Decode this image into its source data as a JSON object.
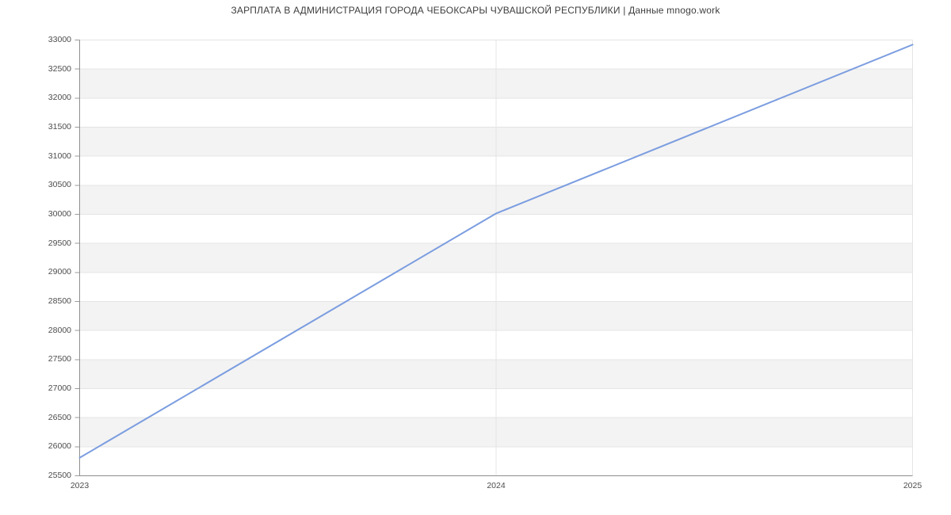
{
  "header": {
    "title": "ЗАРПЛАТА В АДМИНИСТРАЦИЯ ГОРОДА ЧЕБОКСАРЫ ЧУВАШСКОЙ РЕСПУБЛИКИ | Данные mnogo.work"
  },
  "chart_data": {
    "type": "line",
    "title": "ЗАРПЛАТА В АДМИНИСТРАЦИЯ ГОРОДА ЧЕБОКСАРЫ ЧУВАШСКОЙ РЕСПУБЛИКИ | Данные mnogo.work",
    "x": [
      2023,
      2024,
      2025
    ],
    "xticks": [
      "2023",
      "2024",
      "2025"
    ],
    "series": [
      {
        "values": [
          25810,
          30015,
          32920
        ]
      }
    ],
    "ylim": [
      25500,
      33000
    ],
    "ytick_step": 500,
    "yticks": [
      33000,
      32500,
      32000,
      31500,
      31000,
      30500,
      30000,
      29500,
      29000,
      28500,
      28000,
      27500,
      27000,
      26500,
      26000,
      25500
    ],
    "grid": true,
    "legend": false,
    "alternating_bands": true,
    "colors": {
      "line": "#7b9de0",
      "band": "#f3f3f3",
      "gridline": "#e4e4e4",
      "axis": "#8f8f8f",
      "tick": "#9a9a9a",
      "tick_text": "#4c4c4c",
      "title_text": "#3e3e3e",
      "background": "#ffffff"
    }
  }
}
